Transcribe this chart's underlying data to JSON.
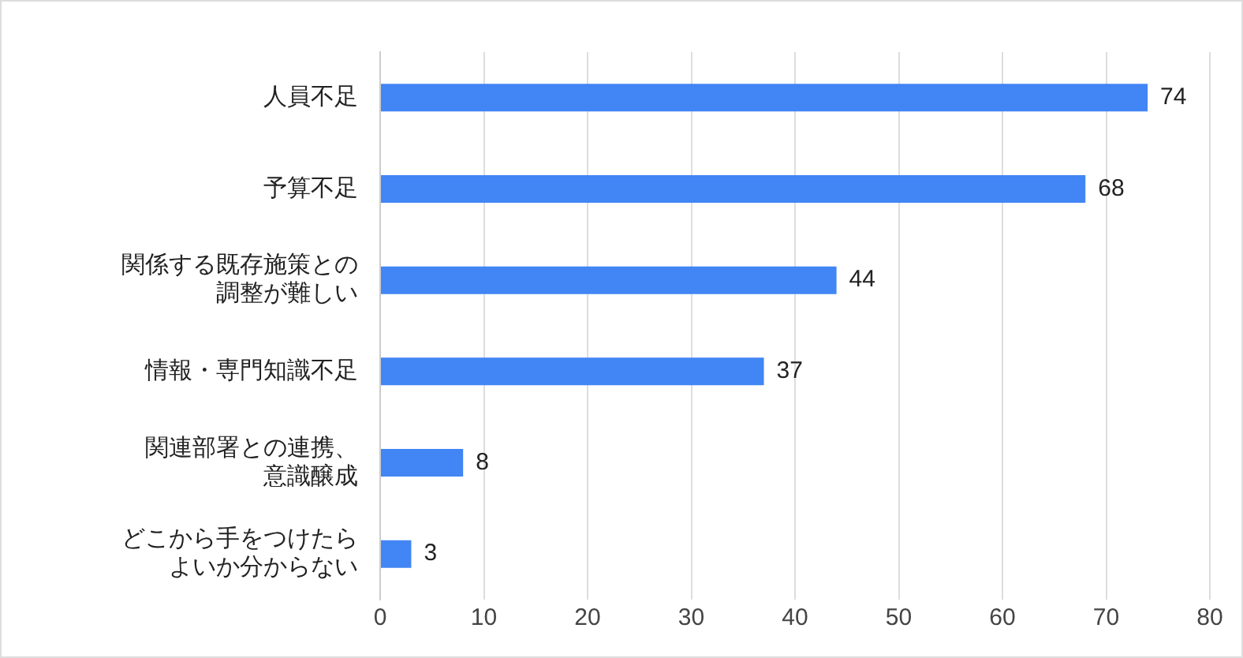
{
  "chart_data": {
    "type": "bar",
    "orientation": "horizontal",
    "categories": [
      "人員不足",
      "予算不足",
      "関係する既存施策との調整が難しい",
      "情報・専門知識不足",
      "関連部署との連携、意識醸成",
      "どこから手をつけたらよいか分からない"
    ],
    "values": [
      74,
      68,
      44,
      37,
      8,
      3
    ],
    "color": "#4285f4",
    "xlim": [
      0,
      80
    ],
    "xticks": [
      0,
      10,
      20,
      30,
      40,
      50,
      60,
      70,
      80
    ],
    "grid": "x",
    "data_labels": true,
    "legend": false
  }
}
